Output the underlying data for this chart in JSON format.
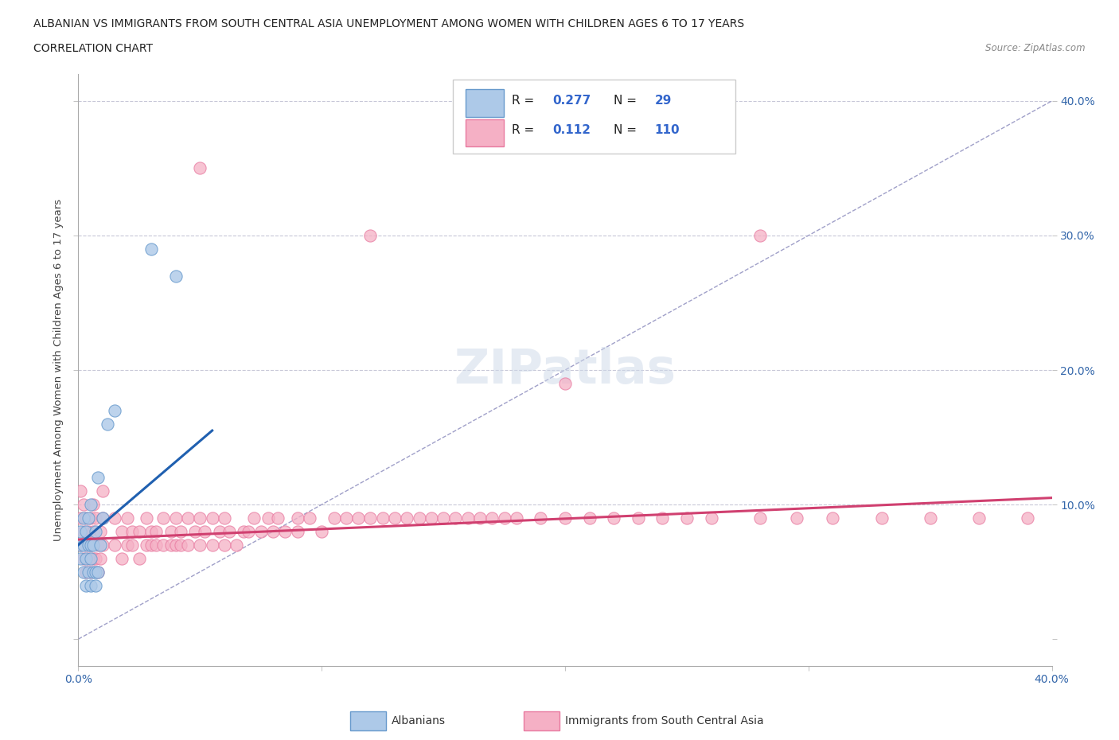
{
  "title_line1": "ALBANIAN VS IMMIGRANTS FROM SOUTH CENTRAL ASIA UNEMPLOYMENT AMONG WOMEN WITH CHILDREN AGES 6 TO 17 YEARS",
  "title_line2": "CORRELATION CHART",
  "source": "Source: ZipAtlas.com",
  "ylabel": "Unemployment Among Women with Children Ages 6 to 17 years",
  "xlim": [
    0.0,
    0.4
  ],
  "ylim": [
    -0.02,
    0.42
  ],
  "xticks": [
    0.0,
    0.1,
    0.2,
    0.3,
    0.4
  ],
  "yticks": [
    0.0,
    0.1,
    0.2,
    0.3,
    0.4
  ],
  "xticklabels": [
    "0.0%",
    "",
    "",
    "",
    "40.0%"
  ],
  "yticklabels_right": [
    "",
    "10.0%",
    "20.0%",
    "30.0%",
    "40.0%"
  ],
  "grid_color": "#c8c8d8",
  "background_color": "#ffffff",
  "albanians_color": "#adc9e8",
  "immigrants_color": "#f5b0c5",
  "albanians_edge": "#6699cc",
  "immigrants_edge": "#e87aa0",
  "trend_albanian_color": "#2060b0",
  "trend_immigrant_color": "#d04070",
  "diag_color": "#8888bb",
  "legend_R_albanian": "0.277",
  "legend_N_albanian": "29",
  "legend_R_immigrant": "0.112",
  "legend_N_immigrant": "110",
  "albanians_x": [
    0.001,
    0.001,
    0.001,
    0.002,
    0.002,
    0.002,
    0.003,
    0.003,
    0.003,
    0.004,
    0.004,
    0.004,
    0.005,
    0.005,
    0.005,
    0.005,
    0.006,
    0.006,
    0.007,
    0.007,
    0.007,
    0.008,
    0.008,
    0.009,
    0.01,
    0.012,
    0.015,
    0.03,
    0.04
  ],
  "albanians_y": [
    0.06,
    0.07,
    0.08,
    0.05,
    0.07,
    0.09,
    0.04,
    0.06,
    0.08,
    0.05,
    0.07,
    0.09,
    0.04,
    0.06,
    0.07,
    0.1,
    0.05,
    0.07,
    0.04,
    0.05,
    0.08,
    0.05,
    0.12,
    0.07,
    0.09,
    0.16,
    0.17,
    0.29,
    0.27
  ],
  "immigrants_x": [
    0.001,
    0.001,
    0.001,
    0.002,
    0.002,
    0.002,
    0.003,
    0.003,
    0.003,
    0.004,
    0.004,
    0.005,
    0.005,
    0.005,
    0.006,
    0.006,
    0.006,
    0.007,
    0.007,
    0.008,
    0.008,
    0.009,
    0.009,
    0.01,
    0.01,
    0.01,
    0.015,
    0.015,
    0.018,
    0.018,
    0.02,
    0.02,
    0.022,
    0.022,
    0.025,
    0.025,
    0.028,
    0.028,
    0.03,
    0.03,
    0.032,
    0.032,
    0.035,
    0.035,
    0.038,
    0.038,
    0.04,
    0.04,
    0.042,
    0.042,
    0.045,
    0.045,
    0.048,
    0.05,
    0.05,
    0.052,
    0.055,
    0.055,
    0.058,
    0.06,
    0.06,
    0.062,
    0.065,
    0.068,
    0.07,
    0.072,
    0.075,
    0.078,
    0.08,
    0.082,
    0.085,
    0.09,
    0.09,
    0.095,
    0.1,
    0.105,
    0.11,
    0.115,
    0.12,
    0.125,
    0.13,
    0.135,
    0.14,
    0.145,
    0.15,
    0.155,
    0.16,
    0.165,
    0.17,
    0.175,
    0.18,
    0.19,
    0.2,
    0.21,
    0.22,
    0.23,
    0.24,
    0.25,
    0.26,
    0.28,
    0.295,
    0.31,
    0.33,
    0.35,
    0.37,
    0.39,
    0.05,
    0.12,
    0.2,
    0.28
  ],
  "immigrants_y": [
    0.07,
    0.09,
    0.11,
    0.06,
    0.08,
    0.1,
    0.05,
    0.07,
    0.09,
    0.06,
    0.08,
    0.05,
    0.07,
    0.09,
    0.06,
    0.08,
    0.1,
    0.06,
    0.09,
    0.05,
    0.07,
    0.06,
    0.08,
    0.07,
    0.09,
    0.11,
    0.07,
    0.09,
    0.06,
    0.08,
    0.07,
    0.09,
    0.07,
    0.08,
    0.06,
    0.08,
    0.07,
    0.09,
    0.07,
    0.08,
    0.07,
    0.08,
    0.07,
    0.09,
    0.07,
    0.08,
    0.07,
    0.09,
    0.07,
    0.08,
    0.07,
    0.09,
    0.08,
    0.07,
    0.09,
    0.08,
    0.07,
    0.09,
    0.08,
    0.07,
    0.09,
    0.08,
    0.07,
    0.08,
    0.08,
    0.09,
    0.08,
    0.09,
    0.08,
    0.09,
    0.08,
    0.09,
    0.08,
    0.09,
    0.08,
    0.09,
    0.09,
    0.09,
    0.09,
    0.09,
    0.09,
    0.09,
    0.09,
    0.09,
    0.09,
    0.09,
    0.09,
    0.09,
    0.09,
    0.09,
    0.09,
    0.09,
    0.09,
    0.09,
    0.09,
    0.09,
    0.09,
    0.09,
    0.09,
    0.09,
    0.09,
    0.09,
    0.09,
    0.09,
    0.09,
    0.09,
    0.35,
    0.3,
    0.19,
    0.3
  ]
}
